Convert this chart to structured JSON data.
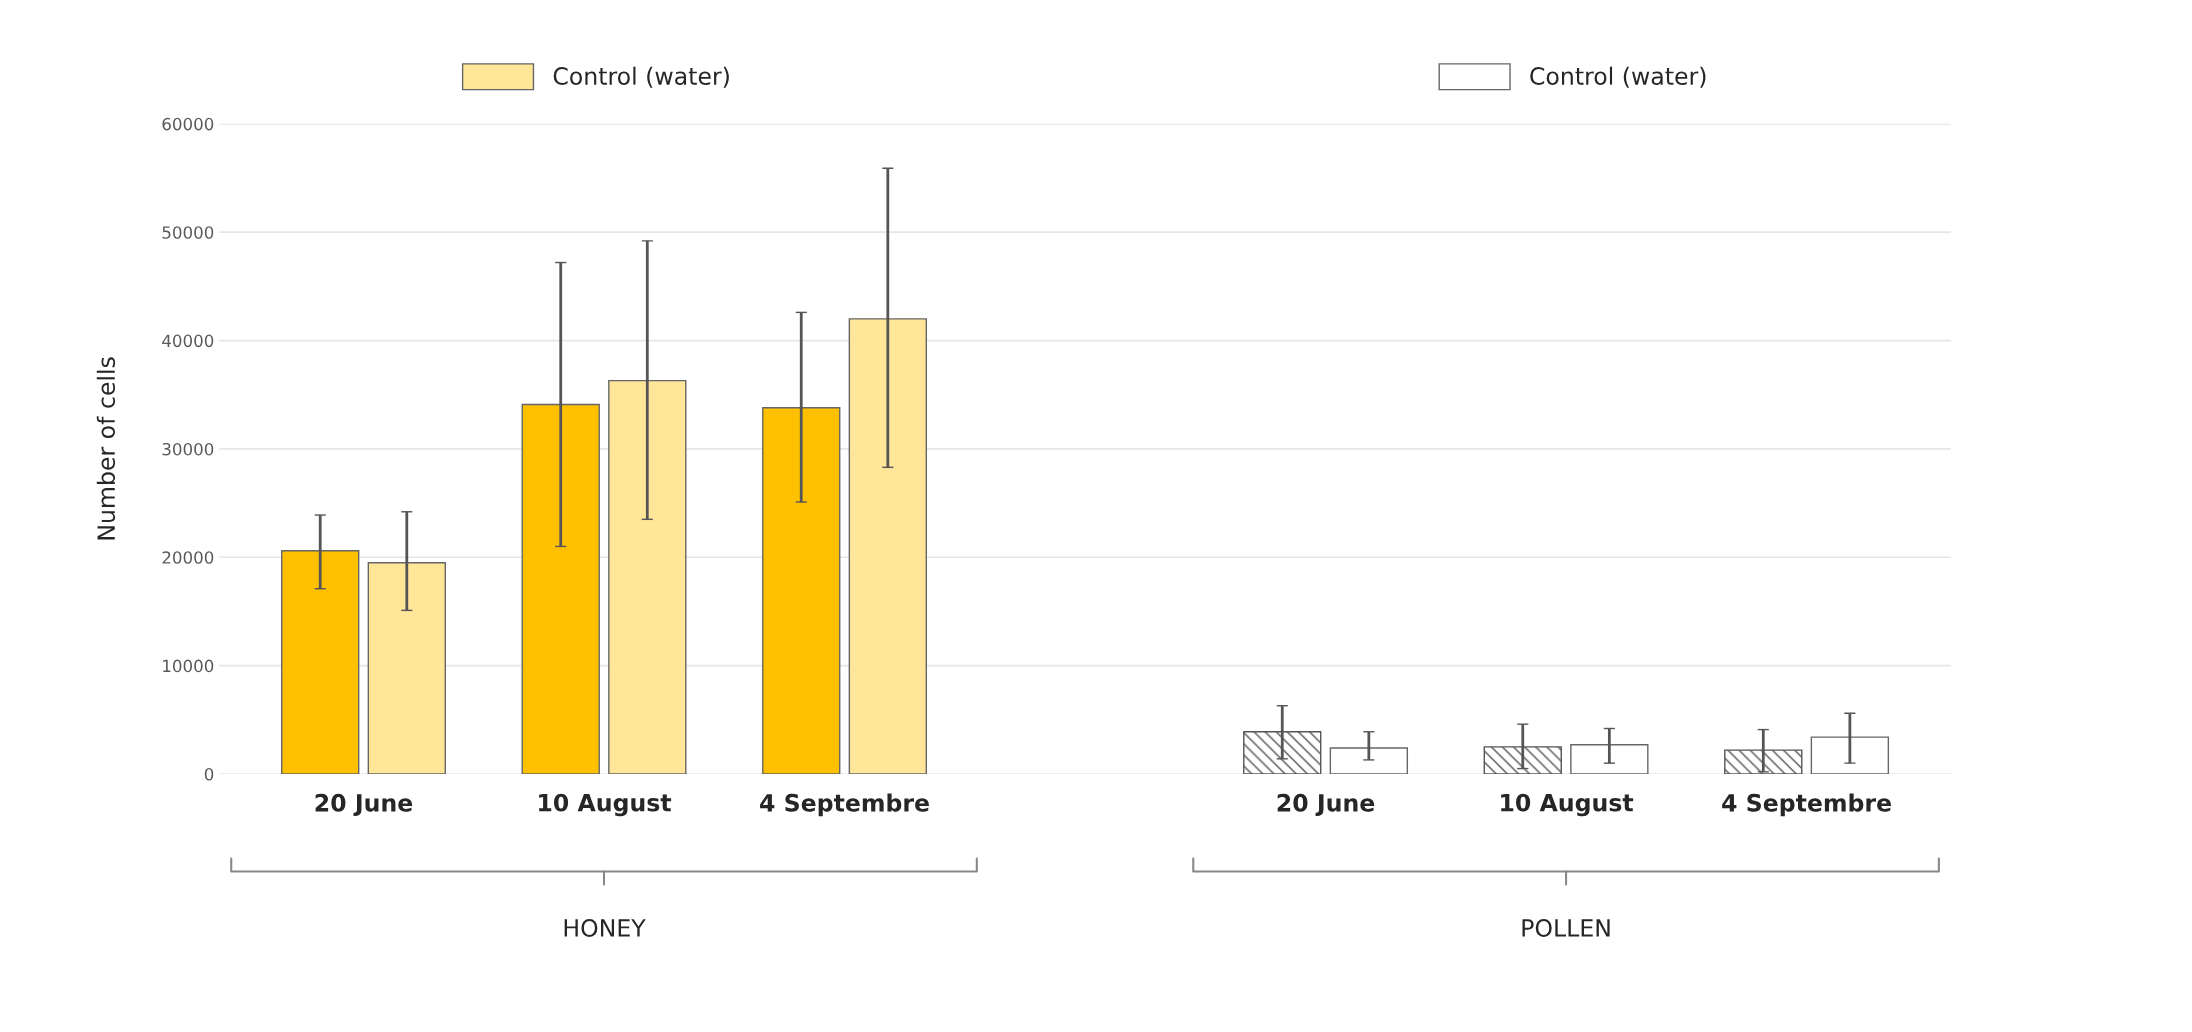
{
  "chart_data": {
    "type": "bar",
    "ylabel": "Number of cells",
    "categories": [
      "20 June",
      "10 August",
      "4 Septembre",
      null,
      "20 June",
      "10 August",
      "4 Septembre"
    ],
    "series": [
      {
        "color": "#ffc000",
        "values": [
          20600,
          34100,
          33800,
          null,
          null,
          null,
          null
        ],
        "errors": [
          [
            17100,
            23900
          ],
          [
            21000,
            47200
          ],
          [
            25100,
            42600
          ],
          null,
          null,
          null,
          null
        ]
      },
      {
        "name": "Control (water)",
        "color": "#ffe699",
        "values": [
          19500,
          36300,
          42000,
          null,
          null,
          null,
          null
        ],
        "errors": [
          [
            15100,
            24200
          ],
          [
            23500,
            49200
          ],
          [
            28300,
            55900
          ],
          null,
          null,
          null,
          null
        ]
      },
      {
        "color": "#555555",
        "values": [
          null,
          null,
          null,
          null,
          3900,
          2500,
          2200
        ],
        "errors": [
          null,
          null,
          null,
          null,
          [
            1400,
            6300
          ],
          [
            500,
            4600
          ],
          [
            200,
            4100
          ]
        ]
      },
      {
        "name": "Control (water)",
        "color": "#ffffff",
        "values": [
          null,
          null,
          null,
          null,
          2400,
          2700,
          3400
        ],
        "errors": [
          null,
          null,
          null,
          null,
          [
            1300,
            3900
          ],
          [
            1000,
            4200
          ],
          [
            1000,
            5600
          ]
        ]
      }
    ],
    "ylim": [
      0,
      60000
    ],
    "yticks": [
      0,
      10000,
      20000,
      30000,
      40000,
      50000,
      60000
    ],
    "grid": "y",
    "legend": "top",
    "annotations": [
      {
        "text": "HONEY"
      },
      {
        "text": "POLLEN"
      }
    ]
  }
}
